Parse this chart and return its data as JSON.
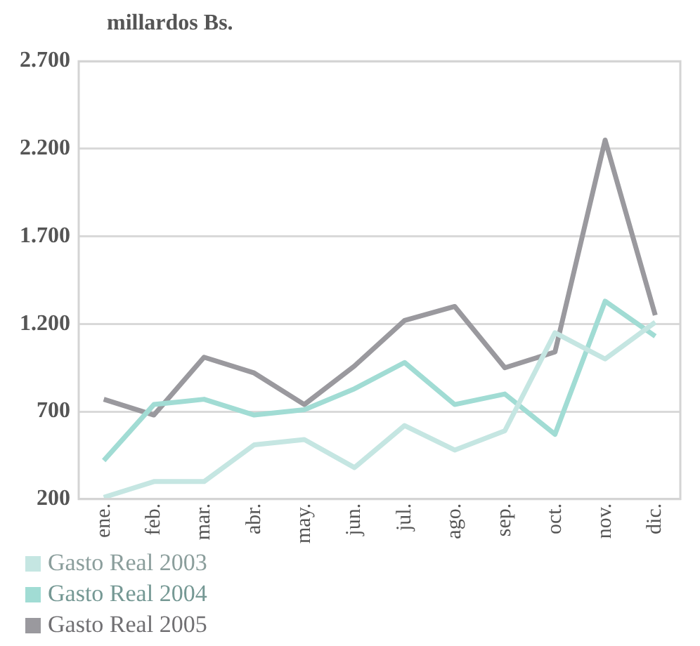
{
  "chart_data": {
    "type": "line",
    "ylabel": "millardos Bs.",
    "categories": [
      "ene.",
      "feb.",
      "mar.",
      "abr.",
      "may.",
      "jun.",
      "jul.",
      "ago.",
      "sep.",
      "oct.",
      "nov.",
      "dic."
    ],
    "series": [
      {
        "name": "Gasto Real 2003",
        "color": "#c5e6e2",
        "values": [
          210,
          300,
          300,
          510,
          540,
          380,
          620,
          480,
          590,
          1150,
          1000,
          1210
        ]
      },
      {
        "name": "Gasto Real 2004",
        "color": "#a1dcd4",
        "values": [
          420,
          740,
          770,
          680,
          710,
          830,
          980,
          740,
          800,
          570,
          1330,
          1130
        ]
      },
      {
        "name": "Gasto Real 2005",
        "color": "#9a999e",
        "values": [
          770,
          680,
          1010,
          920,
          740,
          960,
          1220,
          1300,
          950,
          1040,
          2250,
          1250
        ]
      }
    ],
    "ylim": [
      200,
      2700
    ],
    "yticks": [
      {
        "value": 200,
        "label": "200"
      },
      {
        "value": 700,
        "label": "700"
      },
      {
        "value": 1200,
        "label": "1.200"
      },
      {
        "value": 1700,
        "label": "1.700"
      },
      {
        "value": 2200,
        "label": "2.200"
      },
      {
        "value": 2700,
        "label": "2.700"
      }
    ],
    "grid": "y",
    "legend": "bottom left",
    "marker": "none",
    "line_style": "solid"
  }
}
